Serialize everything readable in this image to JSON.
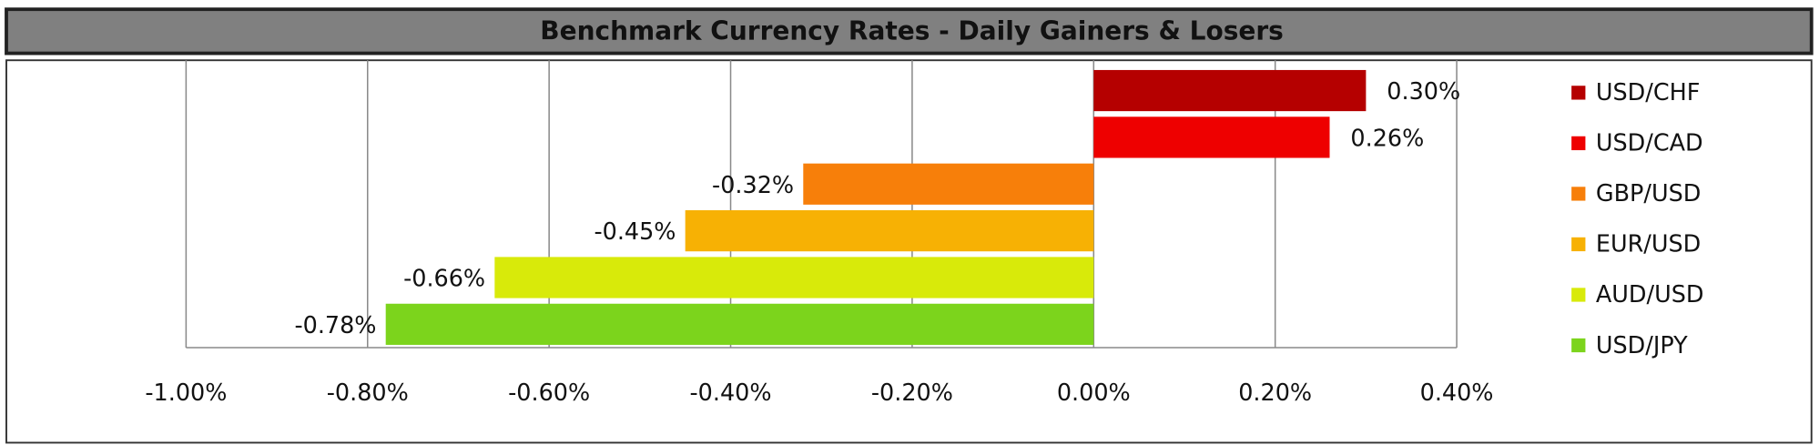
{
  "chart_data": {
    "type": "bar",
    "orientation": "horizontal",
    "title": "Benchmark Currency Rates - Daily Gainers & Losers",
    "series": [
      {
        "name": "USD/CHF",
        "color": "#b50000",
        "values": [
          0.3
        ],
        "value_labels": [
          "0.30%"
        ]
      },
      {
        "name": "USD/CAD",
        "color": "#ee0000",
        "values": [
          0.26
        ],
        "value_labels": [
          "0.26%"
        ]
      },
      {
        "name": "GBP/USD",
        "color": "#f77f0a",
        "values": [
          -0.32
        ],
        "value_labels": [
          "-0.32%"
        ]
      },
      {
        "name": "EUR/USD",
        "color": "#f7b104",
        "values": [
          -0.45
        ],
        "value_labels": [
          "-0.45%"
        ]
      },
      {
        "name": "AUD/USD",
        "color": "#d8ea0a",
        "values": [
          -0.66
        ],
        "value_labels": [
          "-0.66%"
        ]
      },
      {
        "name": "USD/JPY",
        "color": "#7cd41c",
        "values": [
          -0.78
        ],
        "value_labels": [
          "-0.78%"
        ]
      }
    ],
    "xlim": [
      -1.0,
      0.4
    ],
    "xticks": [
      {
        "value": -1.0,
        "label": "-1.00%"
      },
      {
        "value": -0.8,
        "label": "-0.80%"
      },
      {
        "value": -0.6,
        "label": "-0.60%"
      },
      {
        "value": -0.4,
        "label": "-0.40%"
      },
      {
        "value": -0.2,
        "label": "-0.20%"
      },
      {
        "value": 0,
        "label": "0.00%"
      },
      {
        "value": 0.2,
        "label": "0.20%"
      },
      {
        "value": 0.4,
        "label": "0.40%"
      }
    ],
    "grid": true,
    "legend": "right"
  }
}
